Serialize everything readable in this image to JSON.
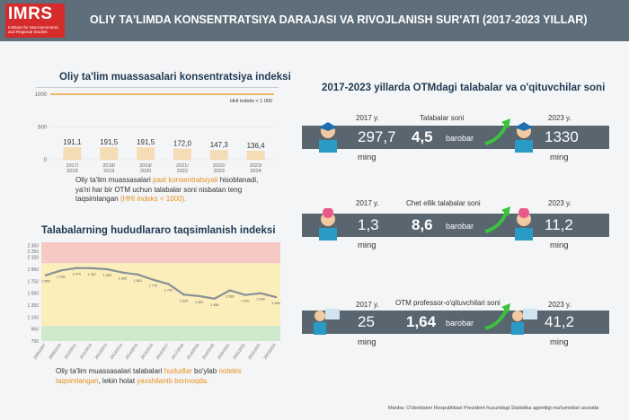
{
  "header": {
    "logo": "IMRS",
    "logo_sub": "Institute for Macroeconomic and Regional Studies",
    "title": "OLIY TA'LIMDA KONSENTRATSIYA DARAJASI VA RIVOJLANISH SUR'ATI (2017-2023 YILLAR)"
  },
  "left_top": {
    "title": "Oliy ta'lim muassasalari konsentratsiya indeksi",
    "ref_label": "HHI indeks < 1 000",
    "note": {
      "p1": "Oliy ta'lim muassasalari ",
      "h1": "past konsentratsiyali",
      "p2": " hisoblanadi, ya'ni har bir OTM uchun talabalar soni nisbatan teng taqsimlangan ",
      "h2": "(HHI indeks < 1000)."
    }
  },
  "left_bottom": {
    "title": "Talabalarning hududlararo taqsimlanish indeksi",
    "note": {
      "p1": "Oliy ta'lim muassasalari talabalari ",
      "h1": "hududlar",
      "p2": " bo'ylab ",
      "h2": "notekis taqsimlangan",
      "p3": ", lekin holat ",
      "h3": "yaxshilanib bormoqda."
    }
  },
  "right": {
    "title": "2017-2023 yillarda OTMdagi talabalar va o'qituvchilar soni",
    "rows": [
      {
        "y1": "2017 y.",
        "label": "Talabalar soni",
        "y2": "2023 y.",
        "v1": "297,7",
        "factor": "4,5",
        "barobar": "barobar",
        "v2": "1330",
        "unit1": "ming",
        "unit2": "ming"
      },
      {
        "y1": "2017 y.",
        "label": "Chet ellik talabalar soni",
        "y2": "2023 y.",
        "v1": "1,3",
        "factor": "8,6",
        "barobar": "barobar",
        "v2": "11,2",
        "unit1": "ming",
        "unit2": "ming"
      },
      {
        "y1": "2017 y.",
        "label": "OTM professor-o'qituvchilari soni",
        "y2": "2023 y.",
        "v1": "25",
        "factor": "1,64",
        "barobar": "barobar",
        "v2": "41,2",
        "unit1": "ming",
        "unit2": "ming"
      }
    ]
  },
  "source": "Manba: O'zbekiston Respublikasi Prezident huzuridagi Statistika agentligi ma'lumotlari asosida",
  "colors": {
    "header": "#5e6e7a",
    "logo": "#d62b2b",
    "bar": "#f5dcb5",
    "line": "#8a9097",
    "accent": "#e8901c",
    "arrow": "#3cc23c"
  },
  "chart_data": [
    {
      "type": "bar",
      "categories": [
        "2017/2018",
        "2018/2019",
        "2019/2020",
        "2021/2022",
        "2022/2023",
        "2023/2024"
      ],
      "values": [
        191.1,
        191.5,
        191.5,
        172.0,
        147.3,
        136.4
      ],
      "labels": [
        "191,1",
        "191,5",
        "191,5",
        "172,0",
        "147,3",
        "136,4"
      ],
      "yticks": [
        "1000",
        "500",
        "0"
      ],
      "reference_line": 1000,
      "ylim": [
        0,
        1000
      ]
    },
    {
      "type": "line",
      "categories": [
        "2006/2007",
        "2009/2010",
        "2010/2011",
        "2011/2012",
        "2012/2013",
        "2013/2014",
        "2014/2015",
        "2015/2016",
        "2016/2017",
        "2017/2018",
        "2018/2019",
        "2019/2020",
        "2020/2021",
        "2021/2022",
        "2022/2023",
        "2023/2024"
      ],
      "values": [
        1850,
        1930,
        1970,
        1967,
        1950,
        1895,
        1861,
        1775,
        1702,
        1525,
        1502,
        1458,
        1596,
        1520,
        1549,
        1484
      ],
      "labels": [
        "1 850",
        "1 930",
        "1 970",
        "1 967",
        "1 950",
        "1 895",
        "1 861",
        "1 775",
        "1 702",
        "1 525",
        "1 502",
        "1 458",
        "1 596",
        "1 520",
        "1 549",
        "1 484"
      ],
      "yticks": [
        2350,
        2250,
        2150,
        1950,
        1750,
        1550,
        1350,
        1150,
        950,
        750
      ],
      "ylim": [
        750,
        2400
      ],
      "bands": [
        {
          "from": 2050,
          "to": 2400,
          "color": "#f6c9c4"
        },
        {
          "from": 1000,
          "to": 2050,
          "color": "#fbeebb"
        },
        {
          "from": 750,
          "to": 1000,
          "color": "#cfe9cd"
        }
      ]
    }
  ]
}
